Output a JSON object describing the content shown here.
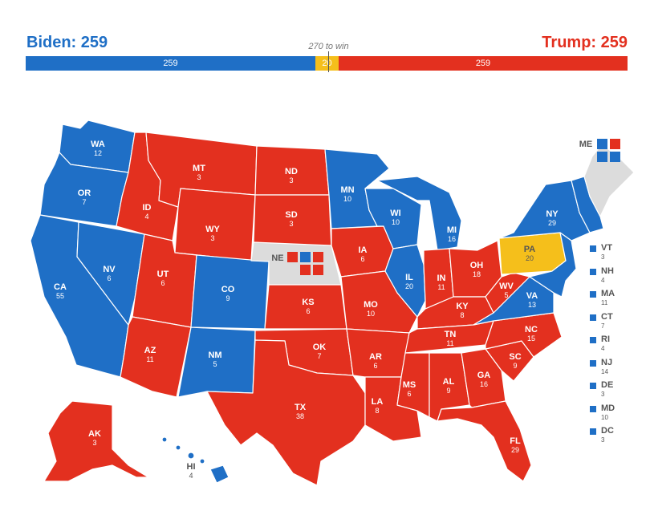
{
  "header": {
    "biden_label": "Biden: 259",
    "trump_label": "Trump: 259",
    "threshold_label": "270 to win"
  },
  "bar": {
    "biden": "259",
    "tossup": "20",
    "trump": "259"
  },
  "colors": {
    "dem": "#1f6fc6",
    "rep": "#e3301f",
    "tossup": "#f5bf1b",
    "split": "#dcdcdc"
  },
  "states": {
    "WA": {
      "abbr": "WA",
      "votes": "12"
    },
    "OR": {
      "abbr": "OR",
      "votes": "7"
    },
    "CA": {
      "abbr": "CA",
      "votes": "55"
    },
    "NV": {
      "abbr": "NV",
      "votes": "6"
    },
    "ID": {
      "abbr": "ID",
      "votes": "4"
    },
    "MT": {
      "abbr": "MT",
      "votes": "3"
    },
    "WY": {
      "abbr": "WY",
      "votes": "3"
    },
    "UT": {
      "abbr": "UT",
      "votes": "6"
    },
    "AZ": {
      "abbr": "AZ",
      "votes": "11"
    },
    "CO": {
      "abbr": "CO",
      "votes": "9"
    },
    "NM": {
      "abbr": "NM",
      "votes": "5"
    },
    "ND": {
      "abbr": "ND",
      "votes": "3"
    },
    "SD": {
      "abbr": "SD",
      "votes": "3"
    },
    "NE": {
      "abbr": "NE",
      "votes": ""
    },
    "KS": {
      "abbr": "KS",
      "votes": "6"
    },
    "OK": {
      "abbr": "OK",
      "votes": "7"
    },
    "TX": {
      "abbr": "TX",
      "votes": "38"
    },
    "MN": {
      "abbr": "MN",
      "votes": "10"
    },
    "IA": {
      "abbr": "IA",
      "votes": "6"
    },
    "MO": {
      "abbr": "MO",
      "votes": "10"
    },
    "AR": {
      "abbr": "AR",
      "votes": "6"
    },
    "LA": {
      "abbr": "LA",
      "votes": "8"
    },
    "WI": {
      "abbr": "WI",
      "votes": "10"
    },
    "IL": {
      "abbr": "IL",
      "votes": "20"
    },
    "MI": {
      "abbr": "MI",
      "votes": "16"
    },
    "IN": {
      "abbr": "IN",
      "votes": "11"
    },
    "OH": {
      "abbr": "OH",
      "votes": "18"
    },
    "KY": {
      "abbr": "KY",
      "votes": "8"
    },
    "TN": {
      "abbr": "TN",
      "votes": "11"
    },
    "MS": {
      "abbr": "MS",
      "votes": "6"
    },
    "AL": {
      "abbr": "AL",
      "votes": "9"
    },
    "GA": {
      "abbr": "GA",
      "votes": "16"
    },
    "FL": {
      "abbr": "FL",
      "votes": "29"
    },
    "SC": {
      "abbr": "SC",
      "votes": "9"
    },
    "NC": {
      "abbr": "NC",
      "votes": "15"
    },
    "VA": {
      "abbr": "VA",
      "votes": "13"
    },
    "WV": {
      "abbr": "WV",
      "votes": "5"
    },
    "PA": {
      "abbr": "PA",
      "votes": "20"
    },
    "NY": {
      "abbr": "NY",
      "votes": "29"
    },
    "ME": {
      "abbr": "ME",
      "votes": ""
    },
    "AK": {
      "abbr": "AK",
      "votes": "3"
    },
    "HI": {
      "abbr": "HI",
      "votes": "4"
    }
  },
  "legend": [
    {
      "abbr": "VT",
      "votes": "3"
    },
    {
      "abbr": "NH",
      "votes": "4"
    },
    {
      "abbr": "MA",
      "votes": "11"
    },
    {
      "abbr": "CT",
      "votes": "7"
    },
    {
      "abbr": "RI",
      "votes": "4"
    },
    {
      "abbr": "NJ",
      "votes": "14"
    },
    {
      "abbr": "DE",
      "votes": "3"
    },
    {
      "abbr": "MD",
      "votes": "10"
    },
    {
      "abbr": "DC",
      "votes": "3"
    }
  ]
}
